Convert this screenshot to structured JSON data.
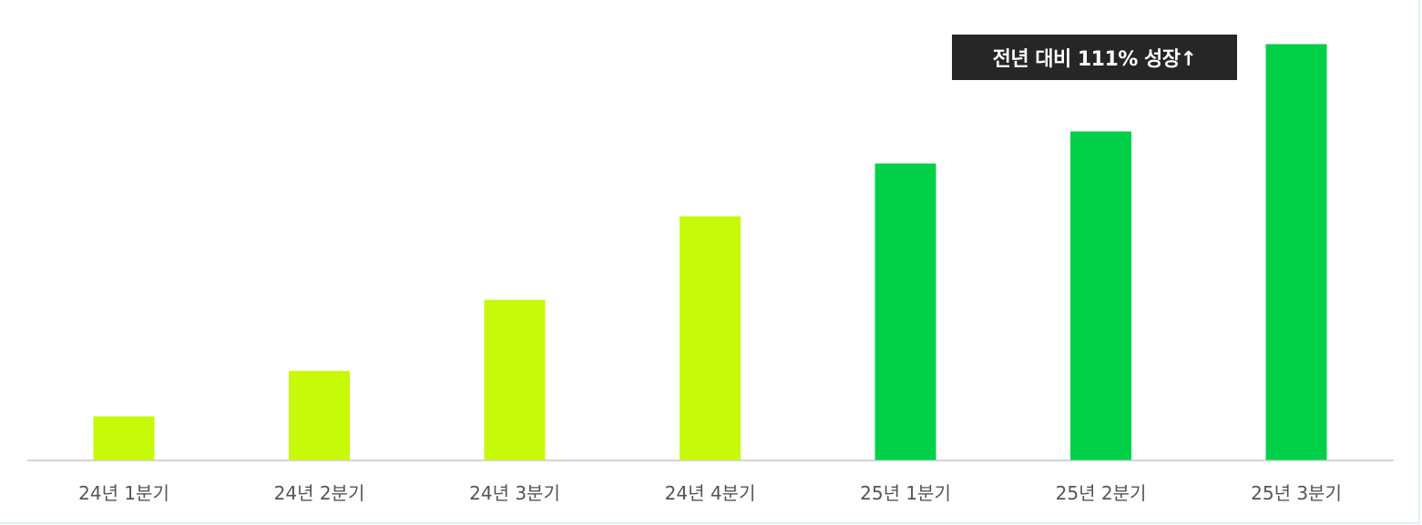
{
  "chart_data": {
    "type": "bar",
    "categories": [
      "24년 1분기",
      "24년 2분기",
      "24년 3분기",
      "24년 4분기",
      "25년 1분기",
      "25년 2분기",
      "25년 3분기"
    ],
    "values": [
      10.5,
      21.4,
      38.5,
      58.6,
      71.3,
      79.0,
      100
    ],
    "value_scale": "relative, tallest bar = 100 (no value axis shown)",
    "colors": [
      "#c6fa08",
      "#c6fa08",
      "#c6fa08",
      "#c6fa08",
      "#00cf48",
      "#00cf48",
      "#00cf48"
    ],
    "annotation": "전년 대비 111% 성장↑",
    "grid": false,
    "legend": "none"
  }
}
